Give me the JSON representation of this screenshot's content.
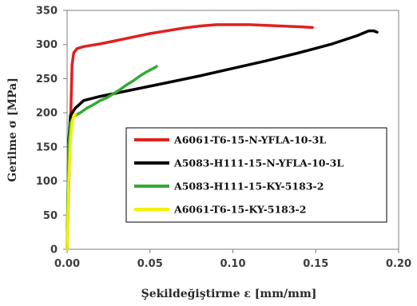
{
  "chart_data": {
    "type": "line",
    "title": "",
    "xlabel": "Şekildeğiştirme ε [mm/mm]",
    "ylabel": "Gerilme σ [MPa]",
    "xlim": [
      0.0,
      0.2
    ],
    "ylim": [
      0,
      350
    ],
    "x_ticks": [
      "0.00",
      "0.05",
      "0.10",
      "0.15",
      "0.20"
    ],
    "y_ticks": [
      "0",
      "50",
      "100",
      "150",
      "200",
      "250",
      "300",
      "350"
    ],
    "grid": false,
    "legend_position": "center-right",
    "series": [
      {
        "name": "A6061-T6-15-N-YFLA-10-3L",
        "color": "#e02020",
        "points": [
          [
            0.0,
            0
          ],
          [
            0.002,
            180
          ],
          [
            0.003,
            270
          ],
          [
            0.004,
            288
          ],
          [
            0.006,
            294
          ],
          [
            0.01,
            297
          ],
          [
            0.02,
            301
          ],
          [
            0.03,
            306
          ],
          [
            0.04,
            311
          ],
          [
            0.05,
            316
          ],
          [
            0.06,
            320
          ],
          [
            0.07,
            324
          ],
          [
            0.08,
            327
          ],
          [
            0.09,
            329
          ],
          [
            0.1,
            329
          ],
          [
            0.11,
            329
          ],
          [
            0.12,
            328
          ],
          [
            0.13,
            327
          ],
          [
            0.14,
            326
          ],
          [
            0.148,
            325
          ]
        ]
      },
      {
        "name": "A5083-H111-15-N-YFLA-10-3L",
        "color": "#000000",
        "points": [
          [
            0.0,
            0
          ],
          [
            0.001,
            160
          ],
          [
            0.002,
            196
          ],
          [
            0.005,
            207
          ],
          [
            0.01,
            218
          ],
          [
            0.02,
            224
          ],
          [
            0.04,
            234
          ],
          [
            0.06,
            244
          ],
          [
            0.08,
            254
          ],
          [
            0.1,
            265
          ],
          [
            0.12,
            276
          ],
          [
            0.14,
            288
          ],
          [
            0.16,
            301
          ],
          [
            0.175,
            313
          ],
          [
            0.182,
            320
          ],
          [
            0.185,
            320
          ],
          [
            0.187,
            318
          ]
        ]
      },
      {
        "name": "A5083-H111-15-KY-5183-2",
        "color": "#33aa33",
        "points": [
          [
            0.0,
            0
          ],
          [
            0.001,
            150
          ],
          [
            0.002,
            185
          ],
          [
            0.004,
            195
          ],
          [
            0.008,
            200
          ],
          [
            0.012,
            207
          ],
          [
            0.016,
            212
          ],
          [
            0.02,
            218
          ],
          [
            0.024,
            222
          ],
          [
            0.028,
            228
          ],
          [
            0.032,
            234
          ],
          [
            0.036,
            241
          ],
          [
            0.04,
            247
          ],
          [
            0.044,
            254
          ],
          [
            0.048,
            260
          ],
          [
            0.052,
            265
          ],
          [
            0.054,
            268
          ]
        ]
      },
      {
        "name": "A6061-T6-15-KY-5183-2",
        "color": "#f0f000",
        "points": [
          [
            0.0,
            0
          ],
          [
            0.001,
            100
          ],
          [
            0.002,
            160
          ],
          [
            0.003,
            185
          ],
          [
            0.004,
            195
          ],
          [
            0.005,
            198
          ]
        ]
      }
    ]
  }
}
